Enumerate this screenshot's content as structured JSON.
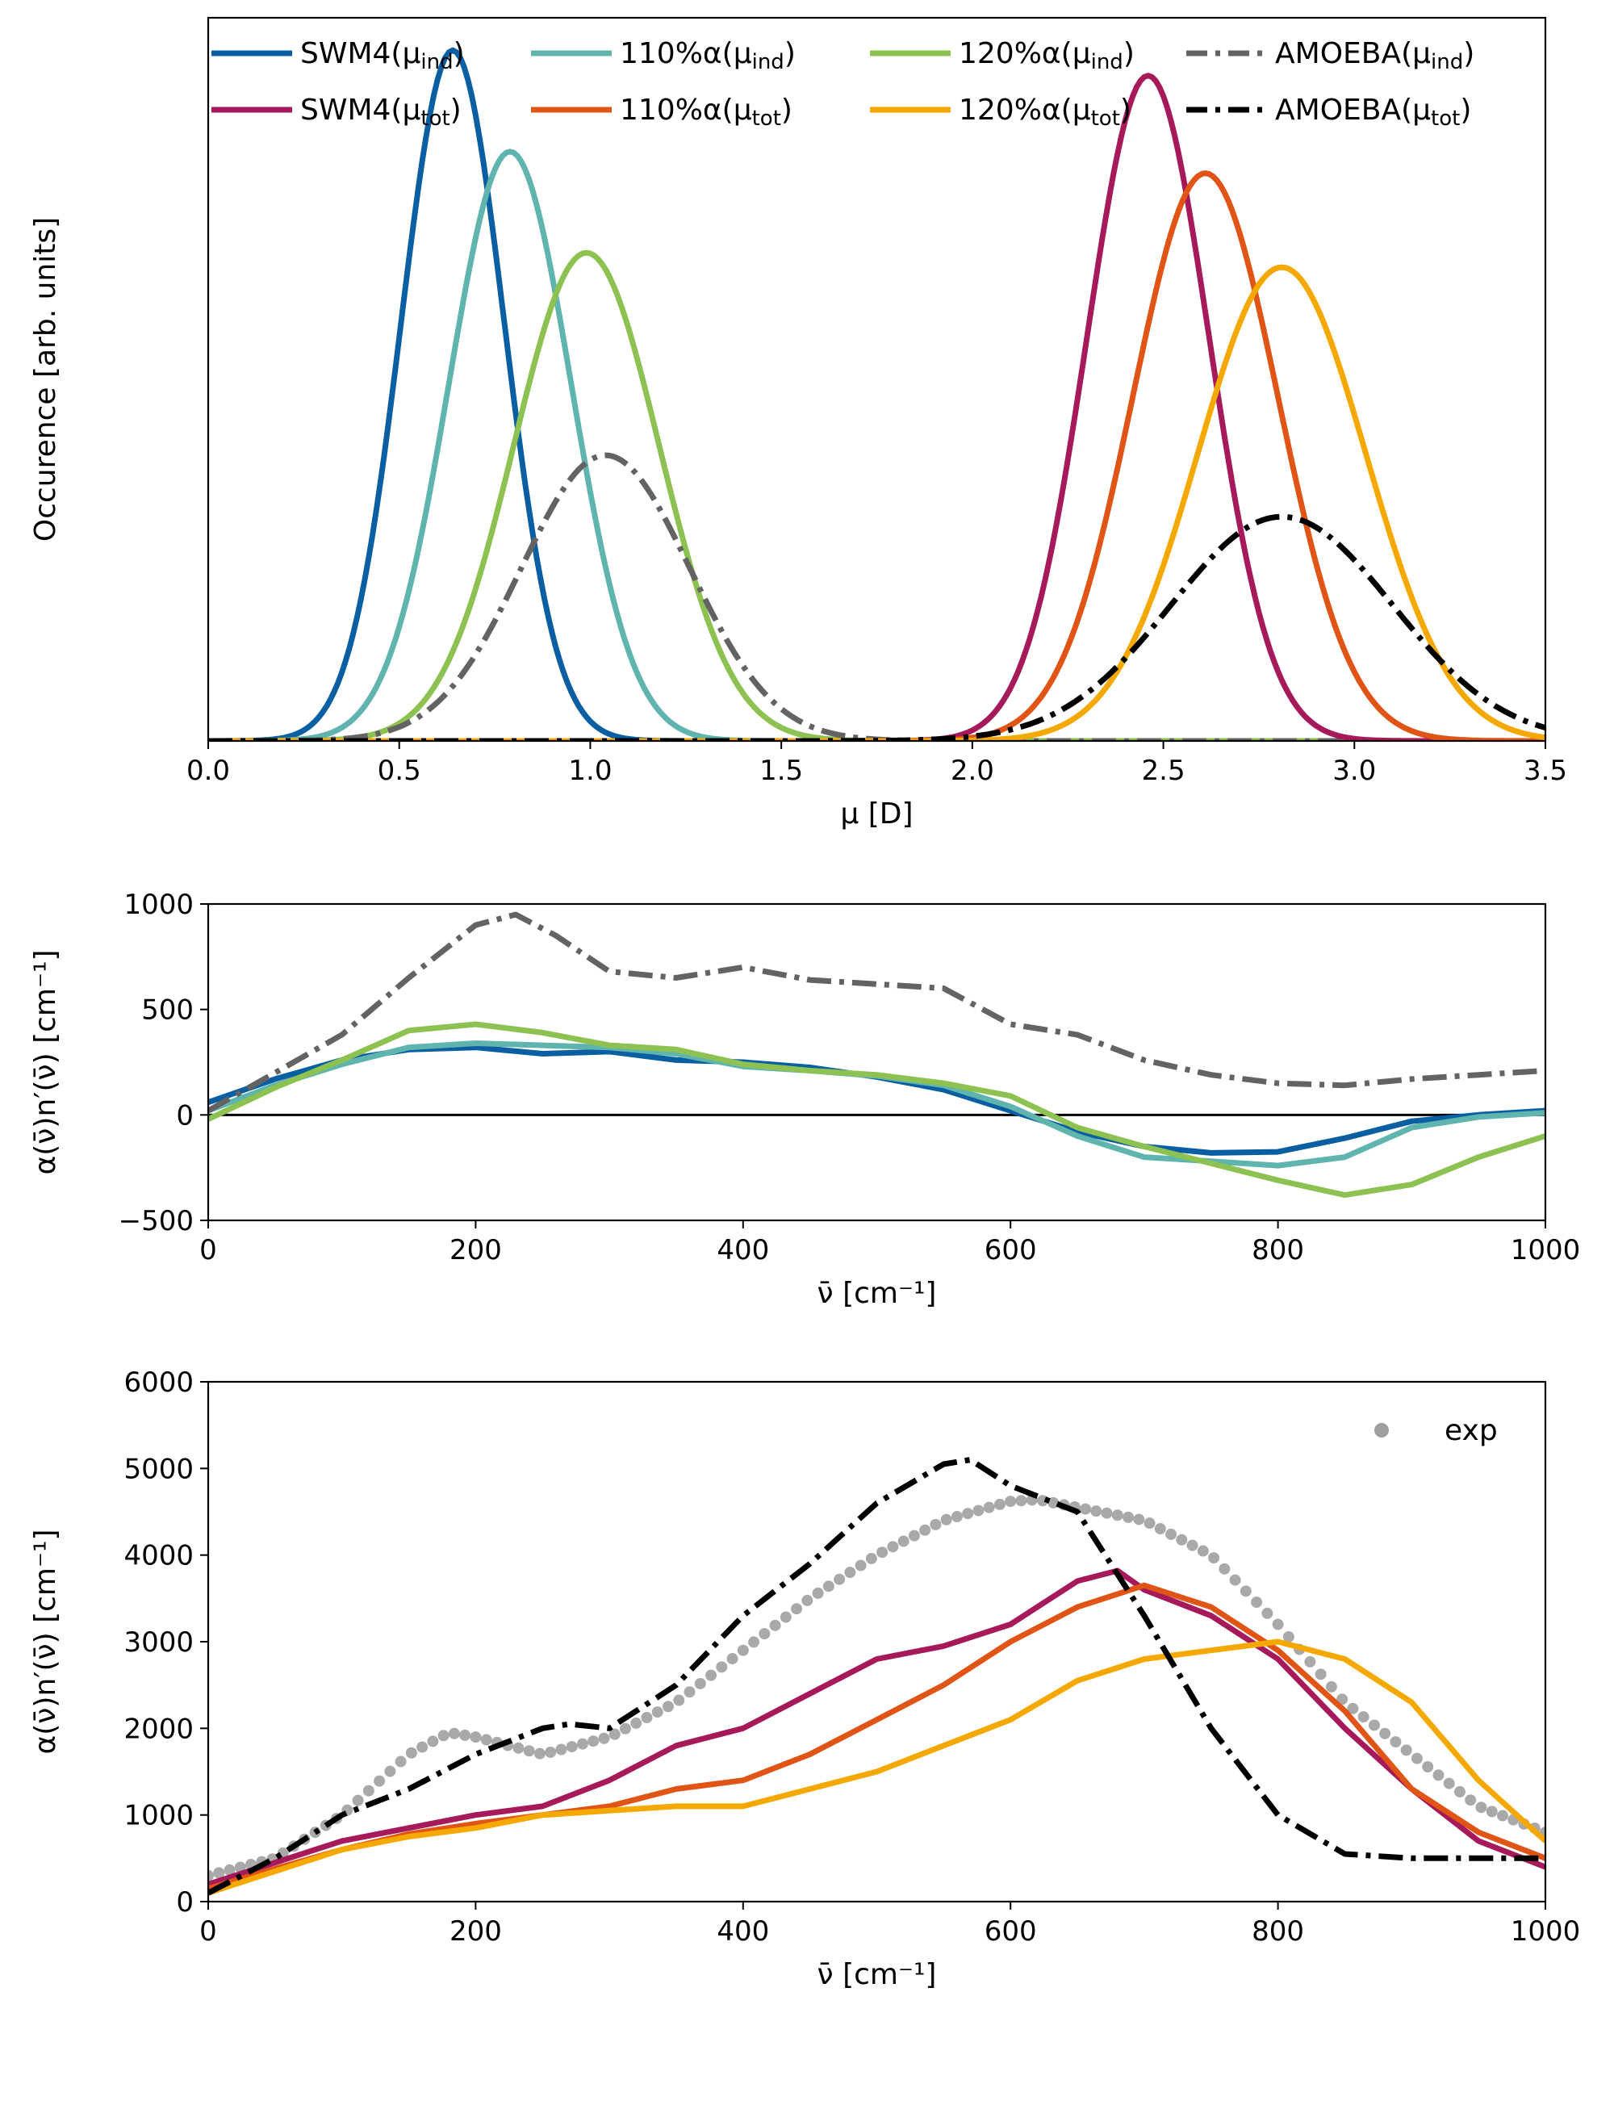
{
  "chart_data": [
    {
      "id": "top",
      "type": "line",
      "xlabel": "μ [D]",
      "ylabel": "Occurence [arb. units]",
      "xlim": [
        0.0,
        3.5
      ],
      "ylim": [
        0,
        1.0
      ],
      "xticks": [
        "0.0",
        "0.5",
        "1.0",
        "1.5",
        "2.0",
        "2.5",
        "3.0",
        "3.5"
      ],
      "series": [
        {
          "name": "SWM4(μind)",
          "label_base": "SWM4(μ",
          "label_sub": "ind",
          "color": "#0a5fa3",
          "style": "solid",
          "mu": 0.64,
          "sigma": 0.135,
          "peak": 0.955
        },
        {
          "name": "110%α(μind)",
          "label_base": "110%α(μ",
          "label_sub": "ind",
          "color": "#5fb5ad",
          "style": "solid",
          "mu": 0.79,
          "sigma": 0.16,
          "peak": 0.815
        },
        {
          "name": "120%α(μind)",
          "label_base": "120%α(μ",
          "label_sub": "ind",
          "color": "#8dc152",
          "style": "solid",
          "mu": 0.99,
          "sigma": 0.19,
          "peak": 0.675
        },
        {
          "name": "AMOEBA(μind)",
          "label_base": "AMOEBA(μ",
          "label_sub": "ind",
          "color": "#636363",
          "style": "dashdot",
          "mu": 1.04,
          "sigma": 0.22,
          "peak": 0.395
        },
        {
          "name": "SWM4(μtot)",
          "label_base": "SWM4(μ",
          "label_sub": "tot",
          "color": "#a6195a",
          "style": "solid",
          "mu": 2.46,
          "sigma": 0.16,
          "peak": 0.92
        },
        {
          "name": "110%α(μtot)",
          "label_base": "110%α(μ",
          "label_sub": "tot",
          "color": "#e05416",
          "style": "solid",
          "mu": 2.61,
          "sigma": 0.19,
          "peak": 0.785
        },
        {
          "name": "120%α(μtot)",
          "label_base": "120%α(μ",
          "label_sub": "tot",
          "color": "#f5a800",
          "style": "solid",
          "mu": 2.81,
          "sigma": 0.22,
          "peak": 0.655
        },
        {
          "name": "AMOEBA(μtot)",
          "label_base": "AMOEBA(μ",
          "label_sub": "tot",
          "color": "#000000",
          "style": "dashdot",
          "mu": 2.81,
          "sigma": 0.29,
          "peak": 0.31
        }
      ]
    },
    {
      "id": "middle",
      "type": "line",
      "xlabel": "ν̄ [cm⁻¹]",
      "ylabel": "α(ν̄)n′(ν̄) [cm⁻¹]",
      "xlim": [
        0,
        1000
      ],
      "ylim": [
        -500,
        1000
      ],
      "xticks": [
        0,
        200,
        400,
        600,
        800,
        1000
      ],
      "yticks": [
        -500,
        0,
        500,
        1000
      ],
      "zero_line": true,
      "series": [
        {
          "name": "SWM4(μind)",
          "color": "#0a5fa3",
          "style": "solid",
          "x": [
            0,
            50,
            100,
            150,
            200,
            250,
            300,
            350,
            400,
            450,
            500,
            550,
            600,
            650,
            700,
            750,
            800,
            850,
            900,
            950,
            1000
          ],
          "y": [
            60,
            170,
            260,
            310,
            320,
            290,
            300,
            260,
            250,
            225,
            180,
            120,
            20,
            -80,
            -150,
            -180,
            -175,
            -110,
            -30,
            0,
            20
          ]
        },
        {
          "name": "110%α(μind)",
          "color": "#5fb5ad",
          "style": "solid",
          "x": [
            0,
            50,
            100,
            150,
            200,
            250,
            300,
            350,
            400,
            450,
            500,
            550,
            600,
            650,
            700,
            750,
            800,
            850,
            900,
            950,
            1000
          ],
          "y": [
            20,
            140,
            240,
            320,
            340,
            330,
            320,
            290,
            230,
            210,
            185,
            140,
            40,
            -100,
            -200,
            -220,
            -240,
            -200,
            -60,
            -10,
            10
          ]
        },
        {
          "name": "120%α(μind)",
          "color": "#8dc152",
          "style": "solid",
          "x": [
            0,
            50,
            100,
            150,
            200,
            250,
            300,
            350,
            400,
            450,
            500,
            550,
            600,
            650,
            700,
            750,
            800,
            850,
            900,
            950,
            1000
          ],
          "y": [
            -20,
            130,
            260,
            400,
            430,
            390,
            330,
            310,
            240,
            210,
            190,
            150,
            90,
            -60,
            -150,
            -230,
            -310,
            -380,
            -330,
            -200,
            -100
          ]
        },
        {
          "name": "AMOEBA(μind)",
          "color": "#636363",
          "style": "dashdot",
          "x": [
            0,
            50,
            100,
            150,
            200,
            230,
            260,
            300,
            350,
            400,
            450,
            500,
            550,
            600,
            650,
            700,
            750,
            800,
            850,
            900,
            950,
            1000
          ],
          "y": [
            20,
            200,
            380,
            650,
            900,
            950,
            850,
            680,
            650,
            700,
            640,
            620,
            600,
            430,
            380,
            260,
            190,
            150,
            140,
            170,
            190,
            210
          ]
        }
      ]
    },
    {
      "id": "bottom",
      "type": "line",
      "xlabel": "ν̄ [cm⁻¹]",
      "ylabel": "α(ν̄)n′(ν̄) [cm⁻¹]",
      "xlim": [
        0,
        1000
      ],
      "ylim": [
        0,
        6000
      ],
      "xticks": [
        0,
        200,
        400,
        600,
        800,
        1000
      ],
      "yticks": [
        0,
        1000,
        2000,
        3000,
        4000,
        5000,
        6000
      ],
      "legend": "top-right",
      "series": [
        {
          "name": "exp",
          "color": "#a0a0a0",
          "style": "dots",
          "x": [
            0,
            50,
            100,
            150,
            180,
            200,
            250,
            300,
            350,
            400,
            450,
            500,
            550,
            600,
            620,
            650,
            700,
            750,
            800,
            850,
            900,
            950,
            1000
          ],
          "y": [
            300,
            500,
            1000,
            1700,
            1950,
            1900,
            1700,
            1900,
            2300,
            2900,
            3500,
            4000,
            4400,
            4620,
            4640,
            4550,
            4400,
            4000,
            3200,
            2300,
            1700,
            1100,
            800
          ]
        },
        {
          "name": "SWM4(μtot)",
          "color": "#a6195a",
          "style": "solid",
          "x": [
            0,
            50,
            100,
            150,
            200,
            250,
            300,
            350,
            400,
            450,
            500,
            550,
            600,
            650,
            680,
            700,
            750,
            800,
            850,
            900,
            950,
            1000
          ],
          "y": [
            200,
            450,
            700,
            850,
            1000,
            1100,
            1400,
            1800,
            2000,
            2400,
            2800,
            2950,
            3200,
            3700,
            3820,
            3600,
            3300,
            2800,
            2000,
            1300,
            700,
            400
          ]
        },
        {
          "name": "110%α(μtot)",
          "color": "#e05416",
          "style": "solid",
          "x": [
            0,
            50,
            100,
            150,
            200,
            250,
            300,
            350,
            400,
            450,
            500,
            550,
            600,
            650,
            700,
            750,
            800,
            850,
            900,
            950,
            1000
          ],
          "y": [
            150,
            380,
            600,
            780,
            900,
            1000,
            1100,
            1300,
            1400,
            1700,
            2100,
            2500,
            3000,
            3400,
            3650,
            3400,
            2900,
            2200,
            1300,
            800,
            500
          ]
        },
        {
          "name": "120%α(μtot)",
          "color": "#f5a800",
          "style": "solid",
          "x": [
            0,
            50,
            100,
            150,
            200,
            250,
            300,
            350,
            400,
            450,
            500,
            550,
            600,
            650,
            700,
            750,
            800,
            850,
            900,
            950,
            1000
          ],
          "y": [
            100,
            350,
            600,
            750,
            850,
            1000,
            1050,
            1100,
            1100,
            1300,
            1500,
            1800,
            2100,
            2550,
            2800,
            2900,
            3000,
            2800,
            2300,
            1400,
            700
          ]
        },
        {
          "name": "AMOEBA(μtot)",
          "color": "#000000",
          "style": "dashdot",
          "x": [
            0,
            50,
            100,
            150,
            200,
            250,
            270,
            300,
            350,
            400,
            450,
            500,
            550,
            570,
            600,
            650,
            700,
            750,
            800,
            850,
            900,
            950,
            1000
          ],
          "y": [
            100,
            500,
            1000,
            1300,
            1700,
            2000,
            2050,
            2000,
            2500,
            3300,
            3900,
            4600,
            5050,
            5100,
            4800,
            4500,
            3300,
            2000,
            1000,
            550,
            500,
            500,
            500
          ]
        }
      ]
    }
  ]
}
